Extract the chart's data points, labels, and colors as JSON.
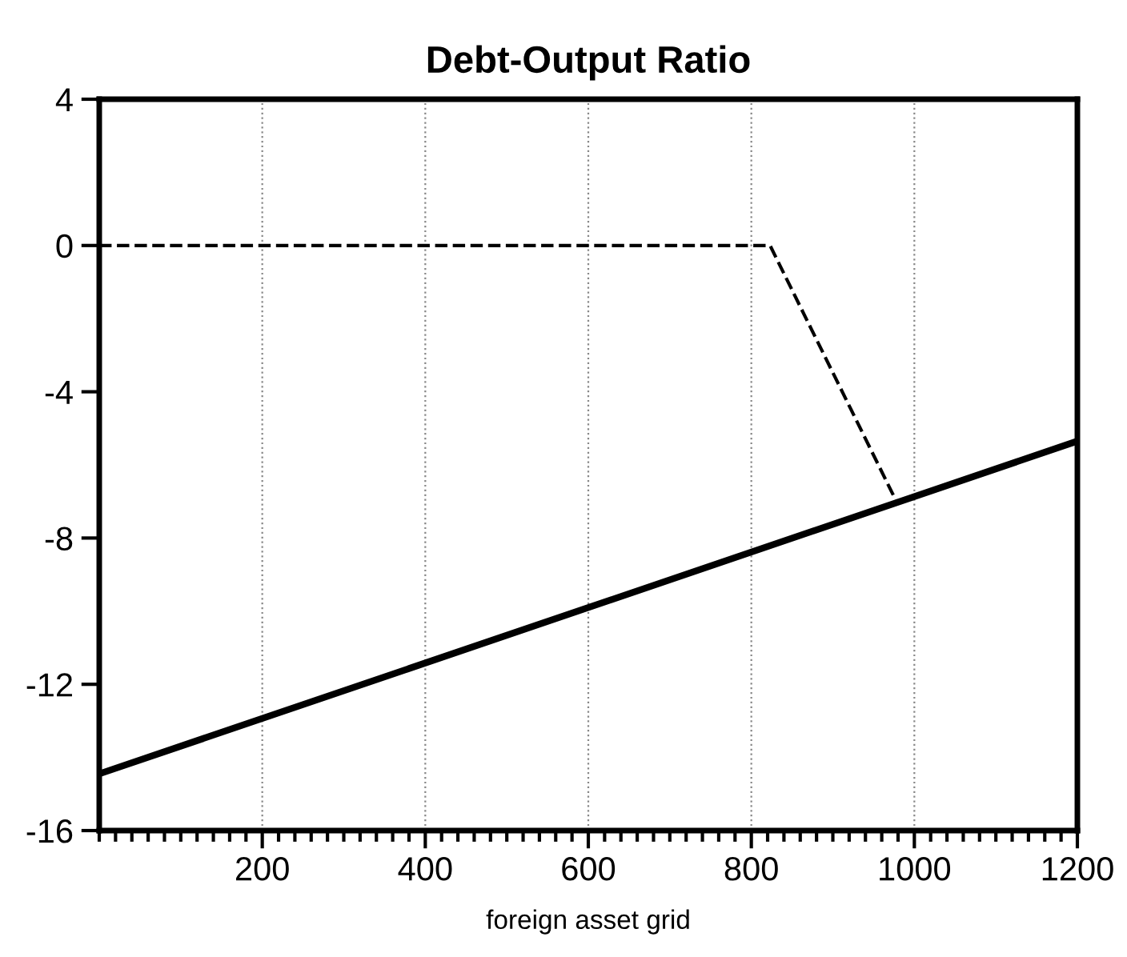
{
  "chart_data": {
    "type": "line",
    "title": "Debt-Output Ratio",
    "xlabel": "foreign asset grid",
    "xlim": [
      0,
      1200
    ],
    "xticks": [
      200,
      400,
      600,
      800,
      1000,
      1200
    ],
    "ylim": [
      -16,
      4
    ],
    "yticks": [
      -16,
      -12,
      -8,
      -4,
      0,
      4
    ],
    "grid": "x",
    "legend": false,
    "series": [
      {
        "color": "#000000",
        "line_style": "solid",
        "x": [
          0,
          1200
        ],
        "values": [
          -14.45,
          -5.35
        ]
      },
      {
        "color": "#000000",
        "line_style": "dashed",
        "x": [
          0,
          823,
          978
        ],
        "values": [
          0,
          0,
          -7.0
        ]
      }
    ]
  }
}
